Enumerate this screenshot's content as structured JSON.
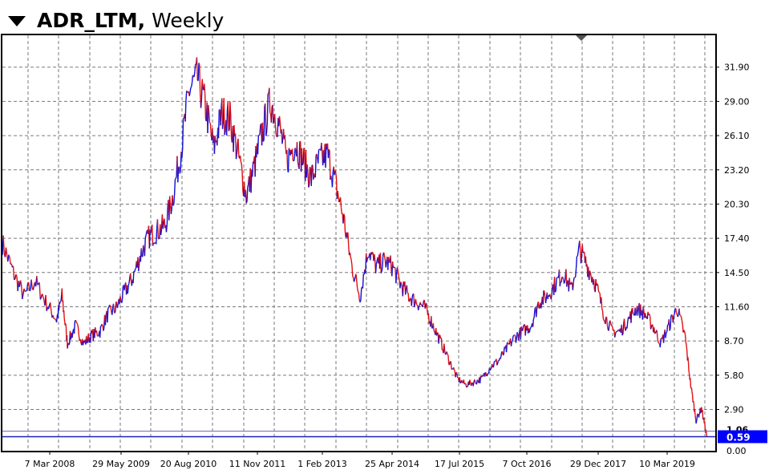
{
  "header": {
    "symbol": "ADR_LTM",
    "separator": ",",
    "timeframe": "Weekly",
    "dropdown_icon": "triangle-down-icon"
  },
  "colors": {
    "up": "#1010d8",
    "down": "#e01010",
    "grid": "#7a7a7a",
    "price_line": "#2020c0",
    "price_tag_bg": "#0000ff",
    "price_tag_text": "#ffffff"
  },
  "chart_data": {
    "type": "line",
    "title": "",
    "y_ticks": [
      "31.90",
      "29.00",
      "26.10",
      "23.20",
      "20.30",
      "17.40",
      "14.50",
      "11.60",
      "8.70",
      "5.80",
      "2.90"
    ],
    "y_bottom_label": "0.00",
    "x_ticks": [
      "7 Mar 2008",
      "29 May 2009",
      "20 Aug 2010",
      "11 Nov 2011",
      "1 Feb 2013",
      "25 Apr 2014",
      "17 Jul 2015",
      "7 Oct 2016",
      "29 Dec 2017",
      "10 Mar 2019"
    ],
    "ylim": [
      -0.6,
      34.6
    ],
    "grid": true,
    "current_price_label": "0.59",
    "current_price": 0.59,
    "secondary_line_label": "1.06",
    "secondary_line": 1.06,
    "series": [
      {
        "x": [
          2006.9,
          2007.1,
          2007.3,
          2007.5,
          2007.7,
          2007.9,
          2008.0,
          2008.1,
          2008.25,
          2008.4,
          2008.55,
          2008.7,
          2008.85,
          2009.0,
          2009.15,
          2009.3,
          2009.45,
          2009.6,
          2009.75,
          2009.9,
          2010.05,
          2010.2,
          2010.35,
          2010.5,
          2010.65,
          2010.8,
          2010.95,
          2011.1,
          2011.25,
          2011.4,
          2011.55,
          2011.7,
          2011.85,
          2012.0,
          2012.15,
          2012.3,
          2012.45,
          2012.6,
          2012.75,
          2012.9,
          2013.05,
          2013.2,
          2013.35,
          2013.5,
          2013.65,
          2013.8,
          2013.95,
          2014.1,
          2014.25,
          2014.4,
          2014.55,
          2014.7,
          2014.85,
          2015.0,
          2015.15,
          2015.3,
          2015.45,
          2015.6,
          2015.75,
          2015.9,
          2016.05,
          2016.2,
          2016.35,
          2016.5,
          2016.65,
          2016.8,
          2016.95,
          2017.1,
          2017.25,
          2017.4,
          2017.55,
          2017.7,
          2017.85,
          2018.0,
          2018.15,
          2018.3,
          2018.45,
          2018.6,
          2018.75,
          2018.9,
          2019.05,
          2019.2,
          2019.35,
          2019.5,
          2019.6,
          2019.7,
          2019.8,
          2019.9
        ],
        "y": [
          17.0,
          14.5,
          12.5,
          13.8,
          12.0,
          10.5,
          12.5,
          8.5,
          10.0,
          8.5,
          9.2,
          9.5,
          11.0,
          11.5,
          12.8,
          14.0,
          16.0,
          17.5,
          18.0,
          18.5,
          21.0,
          25.0,
          30.0,
          31.0,
          28.5,
          25.0,
          28.0,
          27.5,
          24.5,
          21.0,
          23.5,
          26.5,
          29.0,
          27.0,
          24.0,
          25.5,
          24.0,
          22.5,
          24.0,
          24.5,
          22.0,
          19.0,
          15.0,
          12.5,
          16.5,
          15.0,
          15.5,
          15.0,
          13.5,
          12.5,
          12.0,
          11.5,
          10.0,
          8.5,
          7.0,
          5.5,
          5.0,
          5.2,
          5.5,
          6.5,
          7.0,
          8.0,
          9.0,
          9.5,
          10.0,
          12.0,
          12.5,
          13.5,
          14.5,
          13.0,
          16.5,
          15.0,
          13.5,
          11.0,
          9.5,
          9.5,
          10.5,
          11.5,
          11.0,
          10.0,
          8.5,
          10.0,
          11.5,
          9.0,
          5.0,
          2.0,
          3.0,
          0.59
        ]
      }
    ]
  }
}
